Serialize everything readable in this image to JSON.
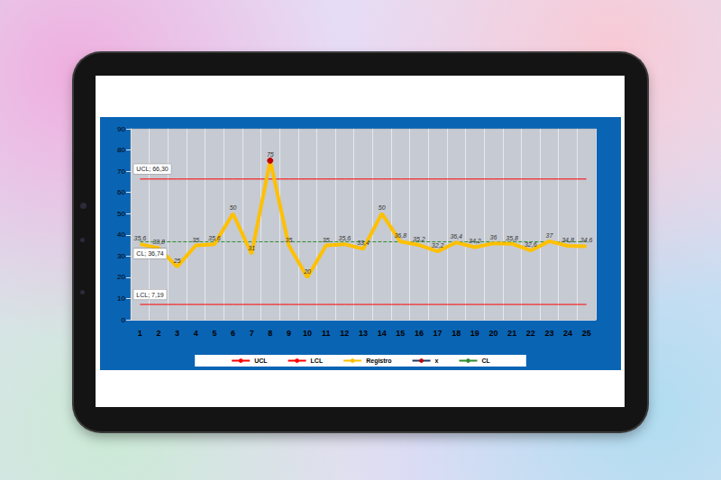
{
  "chart_data": {
    "type": "line",
    "categories": [
      "1",
      "2",
      "3",
      "4",
      "5",
      "6",
      "7",
      "8",
      "9",
      "10",
      "11",
      "12",
      "13",
      "14",
      "15",
      "16",
      "17",
      "18",
      "19",
      "20",
      "21",
      "22",
      "23",
      "24",
      "25"
    ],
    "series": [
      {
        "name": "UCL",
        "color": "#ff0000",
        "values": [
          66.3,
          66.3,
          66.3,
          66.3,
          66.3,
          66.3,
          66.3,
          66.3,
          66.3,
          66.3,
          66.3,
          66.3,
          66.3,
          66.3,
          66.3,
          66.3,
          66.3,
          66.3,
          66.3,
          66.3,
          66.3,
          66.3,
          66.3,
          66.3,
          66.3
        ]
      },
      {
        "name": "LCL",
        "color": "#ff0000",
        "values": [
          7.19,
          7.19,
          7.19,
          7.19,
          7.19,
          7.19,
          7.19,
          7.19,
          7.19,
          7.19,
          7.19,
          7.19,
          7.19,
          7.19,
          7.19,
          7.19,
          7.19,
          7.19,
          7.19,
          7.19,
          7.19,
          7.19,
          7.19,
          7.19,
          7.19
        ]
      },
      {
        "name": "Registro",
        "color": "#ffc000",
        "values": [
          35.6,
          33.8,
          25,
          35,
          35.6,
          50,
          31,
          75,
          35,
          20,
          35,
          35.6,
          33.4,
          50,
          36.8,
          35.2,
          32.2,
          36.4,
          34.2,
          36,
          35.8,
          32.6,
          37,
          34.8,
          34.6
        ],
        "value_labels": [
          "35,6",
          "33,8",
          "25",
          "35",
          "35,6",
          "50",
          "31",
          "75",
          "35",
          "20",
          "35",
          "35,6",
          "33,4",
          "50",
          "36,8",
          "35,2",
          "32,2",
          "36,4",
          "34,2",
          "36",
          "35,8",
          "32,6",
          "37",
          "34,8",
          "34,6"
        ]
      },
      {
        "name": "x",
        "color": "#1f3864",
        "marker": "circle",
        "values": [
          null,
          null,
          null,
          null,
          null,
          null,
          null,
          75,
          null,
          null,
          null,
          null,
          null,
          null,
          null,
          null,
          null,
          null,
          null,
          null,
          null,
          null,
          null,
          null,
          null
        ]
      },
      {
        "name": "CL",
        "color": "#2e8b2e",
        "line_style": "dashed",
        "values": [
          36.74,
          36.74,
          36.74,
          36.74,
          36.74,
          36.74,
          36.74,
          36.74,
          36.74,
          36.74,
          36.74,
          36.74,
          36.74,
          36.74,
          36.74,
          36.74,
          36.74,
          36.74,
          36.74,
          36.74,
          36.74,
          36.74,
          36.74,
          36.74,
          36.74
        ]
      }
    ],
    "annotations": [
      {
        "text": "UCL; 66,30",
        "y": 66.3
      },
      {
        "text": "CL; 36,74",
        "y": 36.74
      },
      {
        "text": "LCL; 7,19",
        "y": 7.19
      }
    ],
    "ylim": [
      0,
      90
    ],
    "yticks": [
      0,
      10,
      20,
      30,
      40,
      50,
      60,
      70,
      80,
      90
    ],
    "grid": true,
    "legend": "bottom",
    "data_labels": true
  }
}
